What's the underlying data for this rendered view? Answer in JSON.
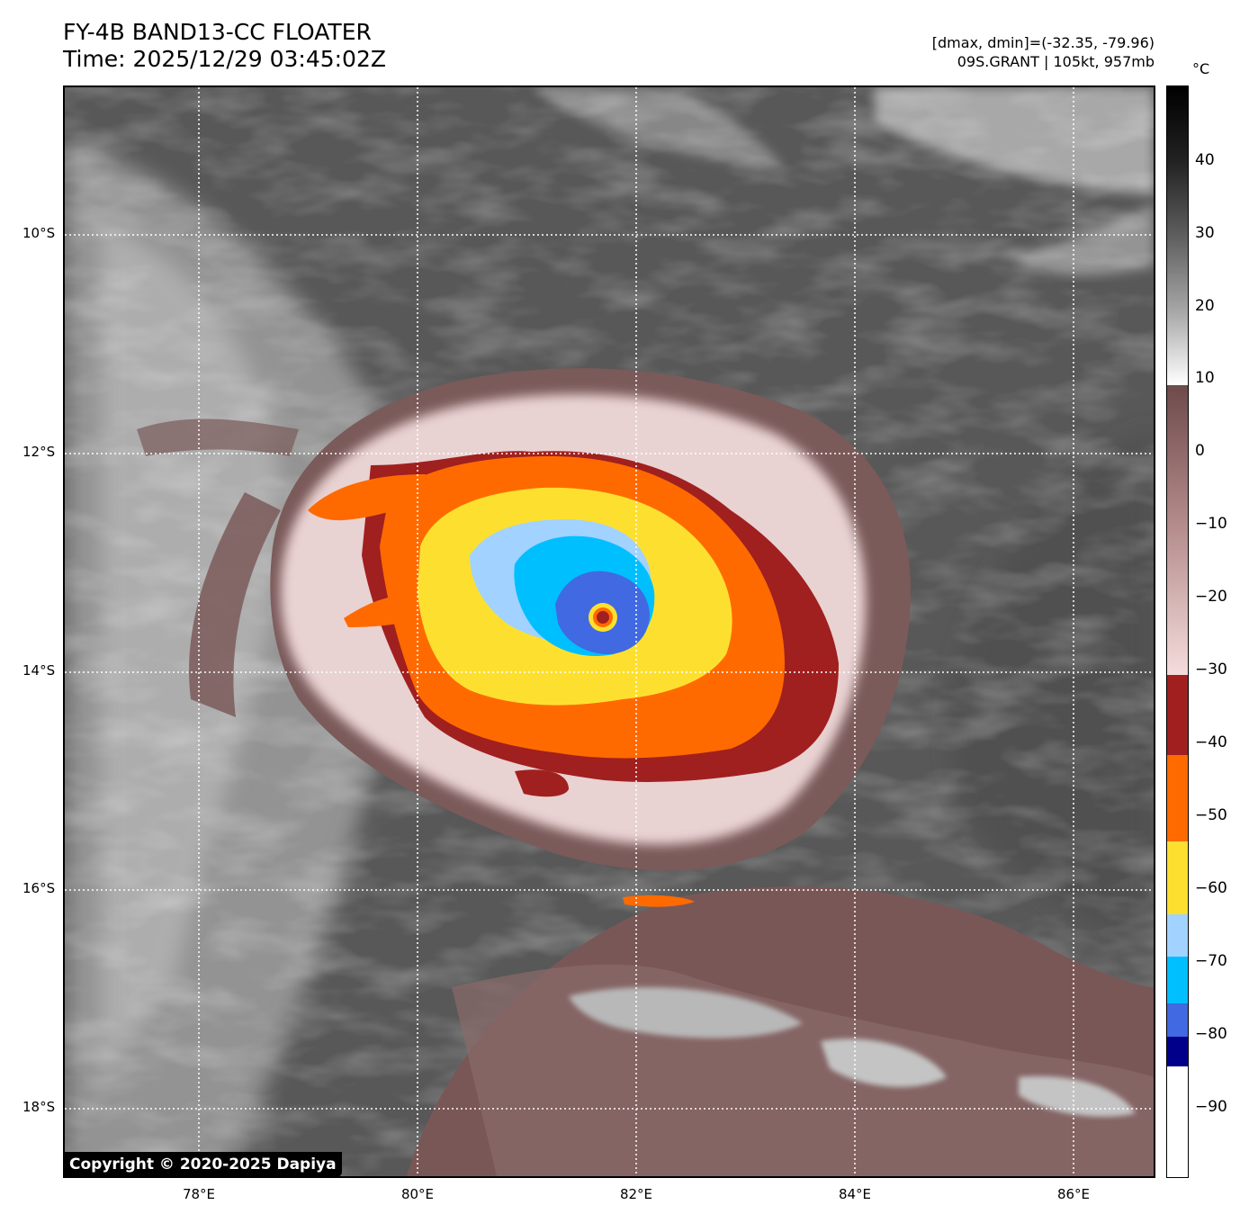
{
  "header": {
    "title_line1": "FY-4B BAND13-CC FLOATER",
    "title_line2": "Time: 2025/12/29 03:45:02Z",
    "info_line1": "[dmax, dmin]=(-32.35, -79.96)",
    "info_line2": "09S.GRANT | 105kt, 957mb"
  },
  "map": {
    "lon_labels": [
      "78°E",
      "80°E",
      "82°E",
      "84°E",
      "86°E"
    ],
    "lat_labels": [
      "10°S",
      "12°S",
      "14°S",
      "16°S",
      "18°S"
    ],
    "storm_center": {
      "lon": 81.7,
      "lat": -13.5
    },
    "copyright": "Copyright © 2020-2025 Dapiya"
  },
  "colorbar": {
    "unit": "°C",
    "labels": [
      "40",
      "30",
      "20",
      "10",
      "0",
      "−10",
      "−20",
      "−30",
      "−40",
      "−50",
      "−60",
      "−70",
      "−80",
      "−90"
    ],
    "bands": [
      {
        "from": 10,
        "to": 50,
        "kind": "gray-gradient"
      },
      {
        "from": -30,
        "to": 10,
        "kind": "brown-to-pink"
      },
      {
        "from": -41,
        "to": -30,
        "color": "#a0201f"
      },
      {
        "from": -53,
        "to": -41,
        "color": "#ff6a00"
      },
      {
        "from": -63,
        "to": -53,
        "color": "#fde02f"
      },
      {
        "from": -69,
        "to": -63,
        "color": "#a2d2ff"
      },
      {
        "from": -76,
        "to": -69,
        "color": "#00bfff"
      },
      {
        "from": -81,
        "to": -76,
        "color": "#4169e1"
      },
      {
        "from": -85,
        "to": -81,
        "color": "#00008b"
      },
      {
        "from": -100,
        "to": -85,
        "color": "#ffffff"
      }
    ]
  }
}
